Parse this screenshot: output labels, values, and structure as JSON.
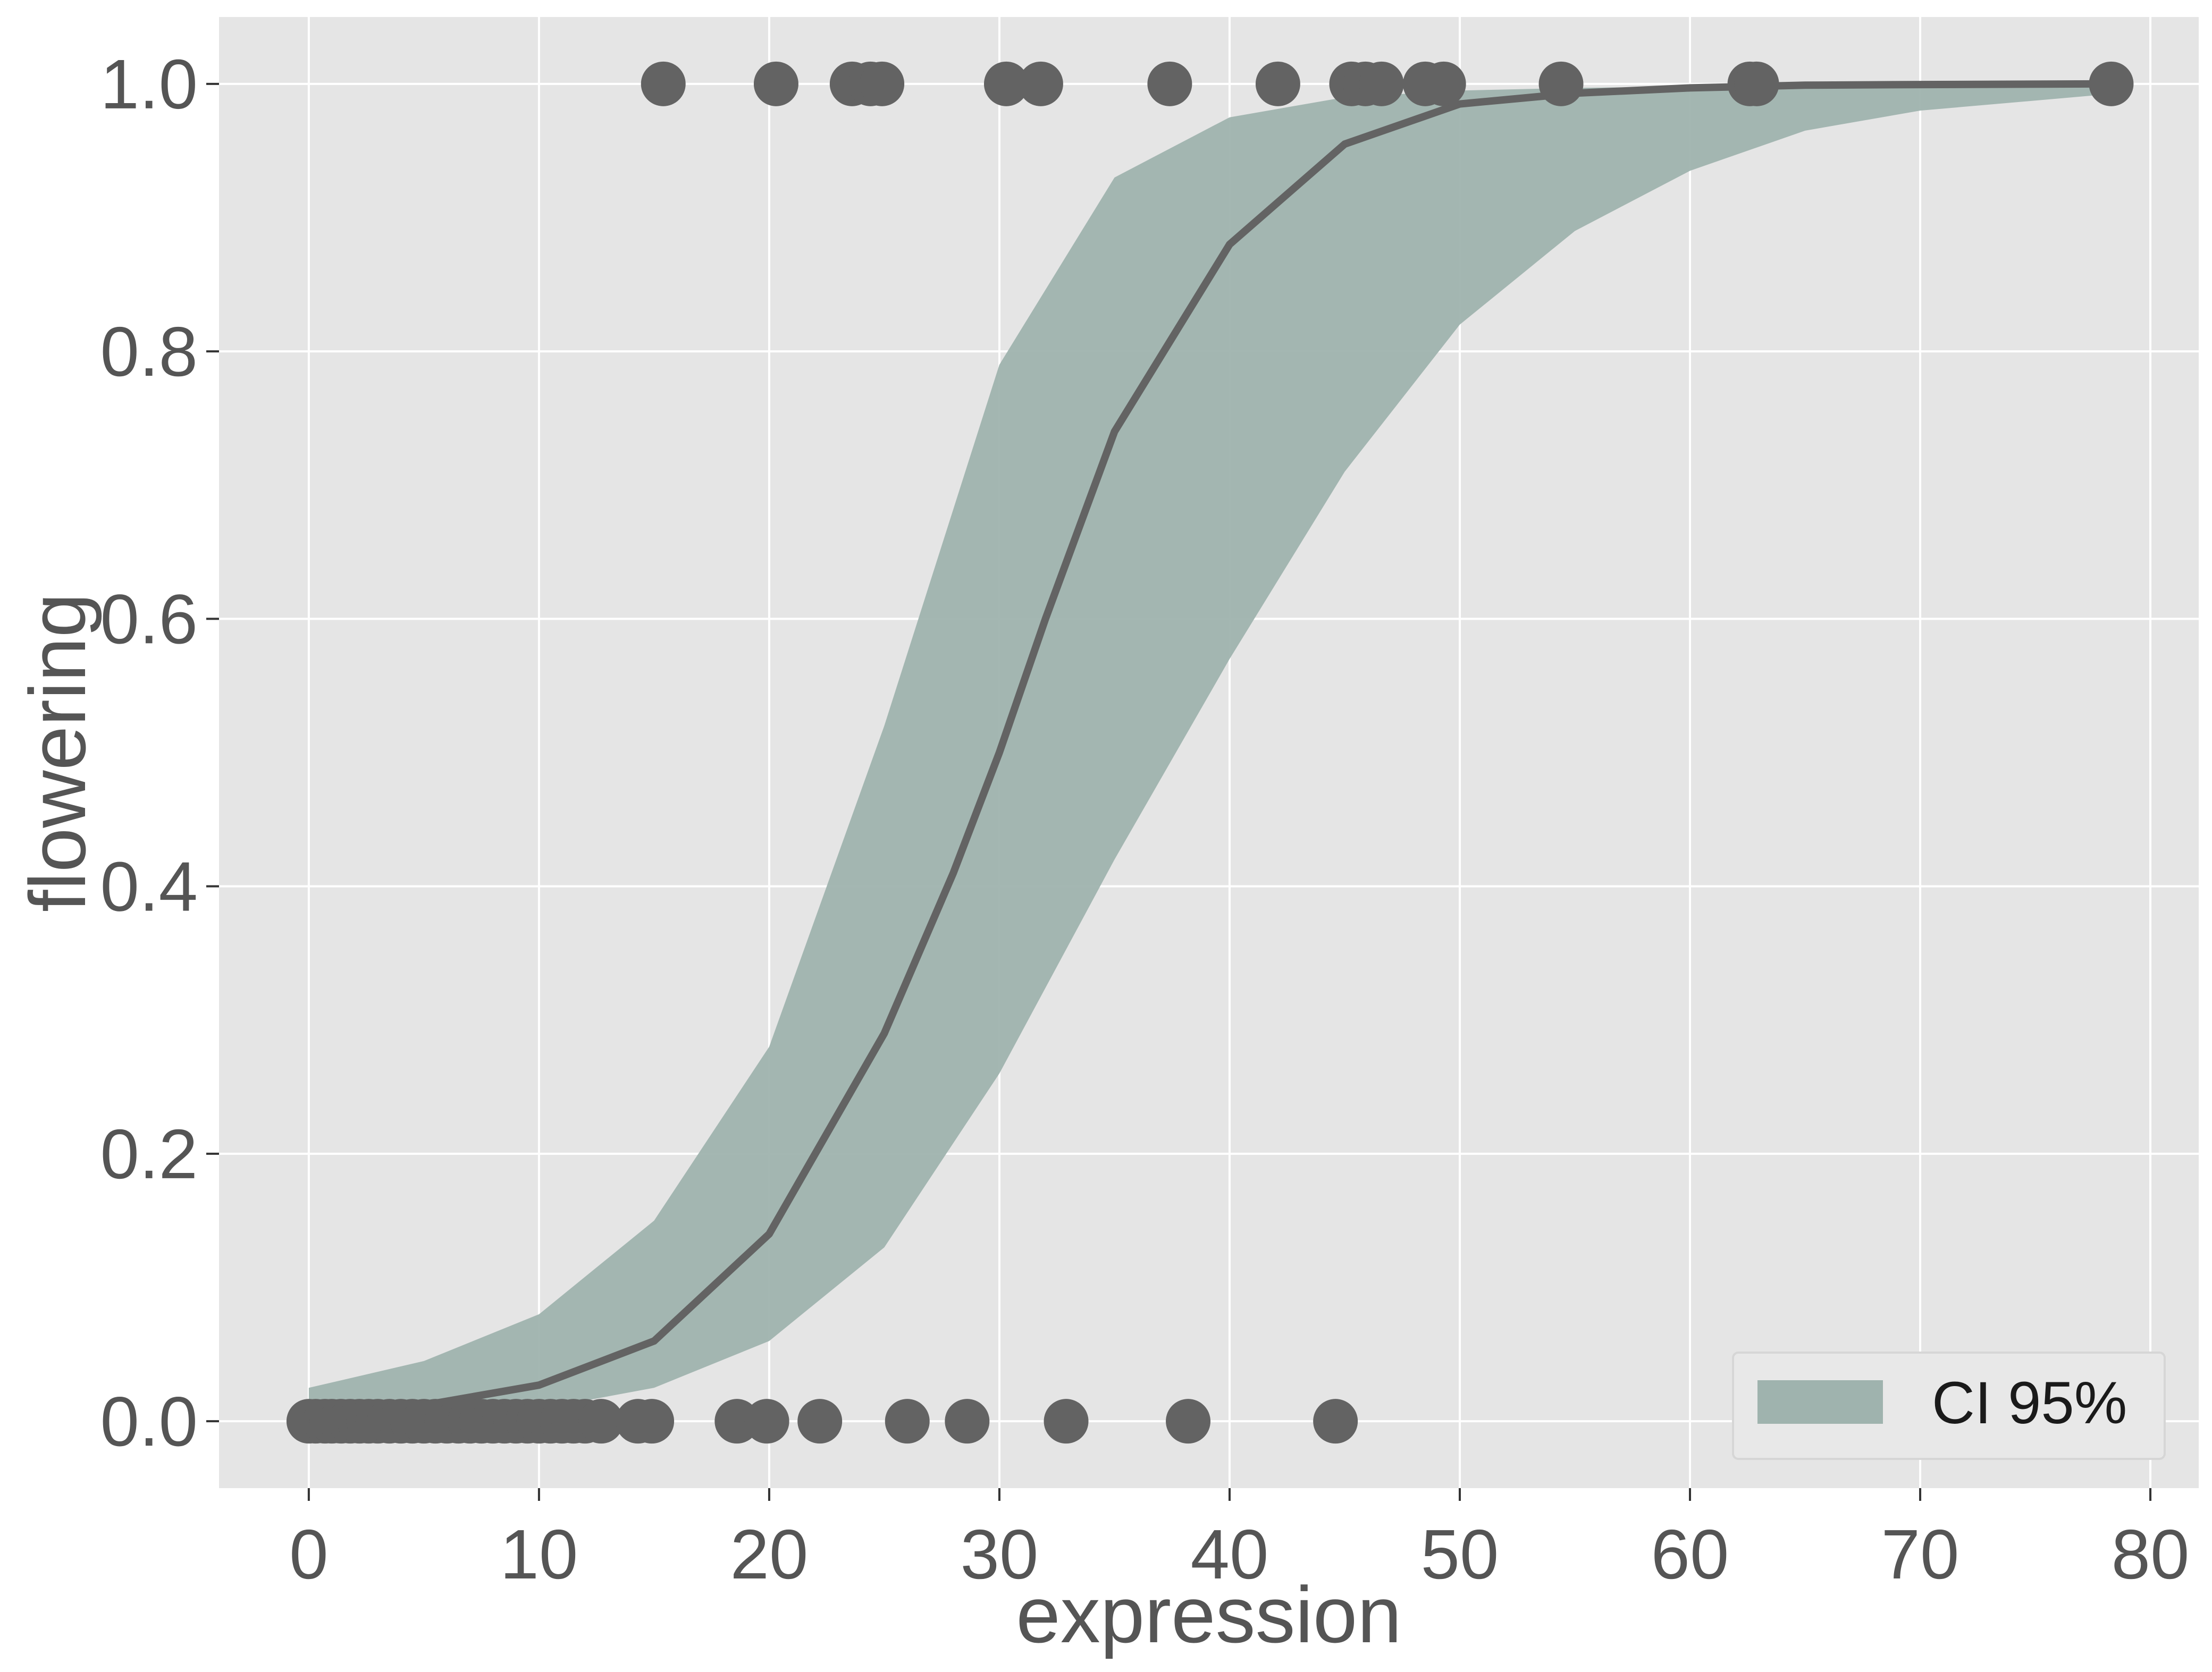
{
  "chart_data": {
    "type": "scatter",
    "xlabel": "expression",
    "ylabel": "flowering",
    "xlim": [
      -3.9,
      82.1
    ],
    "ylim": [
      -0.05,
      1.05
    ],
    "x_ticks": [
      0,
      10,
      20,
      30,
      40,
      50,
      60,
      70,
      80
    ],
    "y_ticks": [
      0.0,
      0.2,
      0.4,
      0.6,
      0.8,
      1.0
    ],
    "x_tick_labels": [
      "0",
      "10",
      "20",
      "30",
      "40",
      "50",
      "60",
      "70",
      "80"
    ],
    "y_tick_labels": [
      "0.0",
      "0.2",
      "0.4",
      "0.6",
      "0.8",
      "1.0"
    ],
    "grid": true,
    "legend_position": "bottom-right",
    "legend_label": "CI 95%",
    "colors": {
      "panel": "#e5e5e5",
      "grid": "#ffffff",
      "points": "#636363",
      "curve": "#636363",
      "band": "#9fb3ae",
      "tick_text": "#555555"
    },
    "points": {
      "zeros": [
        0,
        0.3,
        0.7,
        1.0,
        1.4,
        1.8,
        2.2,
        2.6,
        3.0,
        3.5,
        4.0,
        4.5,
        5.0,
        5.5,
        6.0,
        6.5,
        7.0,
        7.5,
        8.0,
        8.5,
        9.0,
        9.5,
        10.0,
        10.5,
        11.0,
        11.5,
        12.0,
        12.7,
        14.3,
        14.9,
        18.6,
        19.9,
        22.2,
        26.0,
        28.6,
        32.9,
        38.2,
        44.6
      ],
      "ones": [
        15.4,
        20.3,
        23.6,
        24.4,
        24.9,
        30.3,
        31.8,
        37.4,
        42.1,
        45.3,
        45.9,
        46.6,
        48.5,
        49.3,
        54.4,
        62.6,
        62.9,
        78.3
      ]
    },
    "fit": {
      "x": [
        0,
        5,
        10,
        15,
        20,
        25,
        28,
        30,
        32,
        35,
        40,
        45,
        50,
        55,
        60,
        65,
        70,
        78
      ],
      "y": [
        0.004,
        0.012,
        0.027,
        0.06,
        0.14,
        0.29,
        0.41,
        0.5,
        0.6,
        0.74,
        0.88,
        0.955,
        0.985,
        0.993,
        0.997,
        0.999,
        0.9995,
        1.0
      ]
    },
    "ci_upper": {
      "x": [
        0,
        5,
        10,
        15,
        20,
        25,
        30,
        35,
        40,
        45,
        50,
        55,
        60,
        70,
        78
      ],
      "y": [
        0.025,
        0.045,
        0.08,
        0.15,
        0.28,
        0.52,
        0.79,
        0.93,
        0.975,
        0.99,
        0.995,
        0.997,
        0.998,
        0.999,
        0.999
      ]
    },
    "ci_lower": {
      "x": [
        0,
        5,
        10,
        15,
        20,
        25,
        30,
        35,
        40,
        45,
        50,
        55,
        60,
        65,
        70,
        78
      ],
      "y": [
        0.0,
        0.003,
        0.009,
        0.025,
        0.06,
        0.13,
        0.26,
        0.42,
        0.57,
        0.71,
        0.82,
        0.89,
        0.935,
        0.965,
        0.98,
        0.992
      ]
    }
  }
}
